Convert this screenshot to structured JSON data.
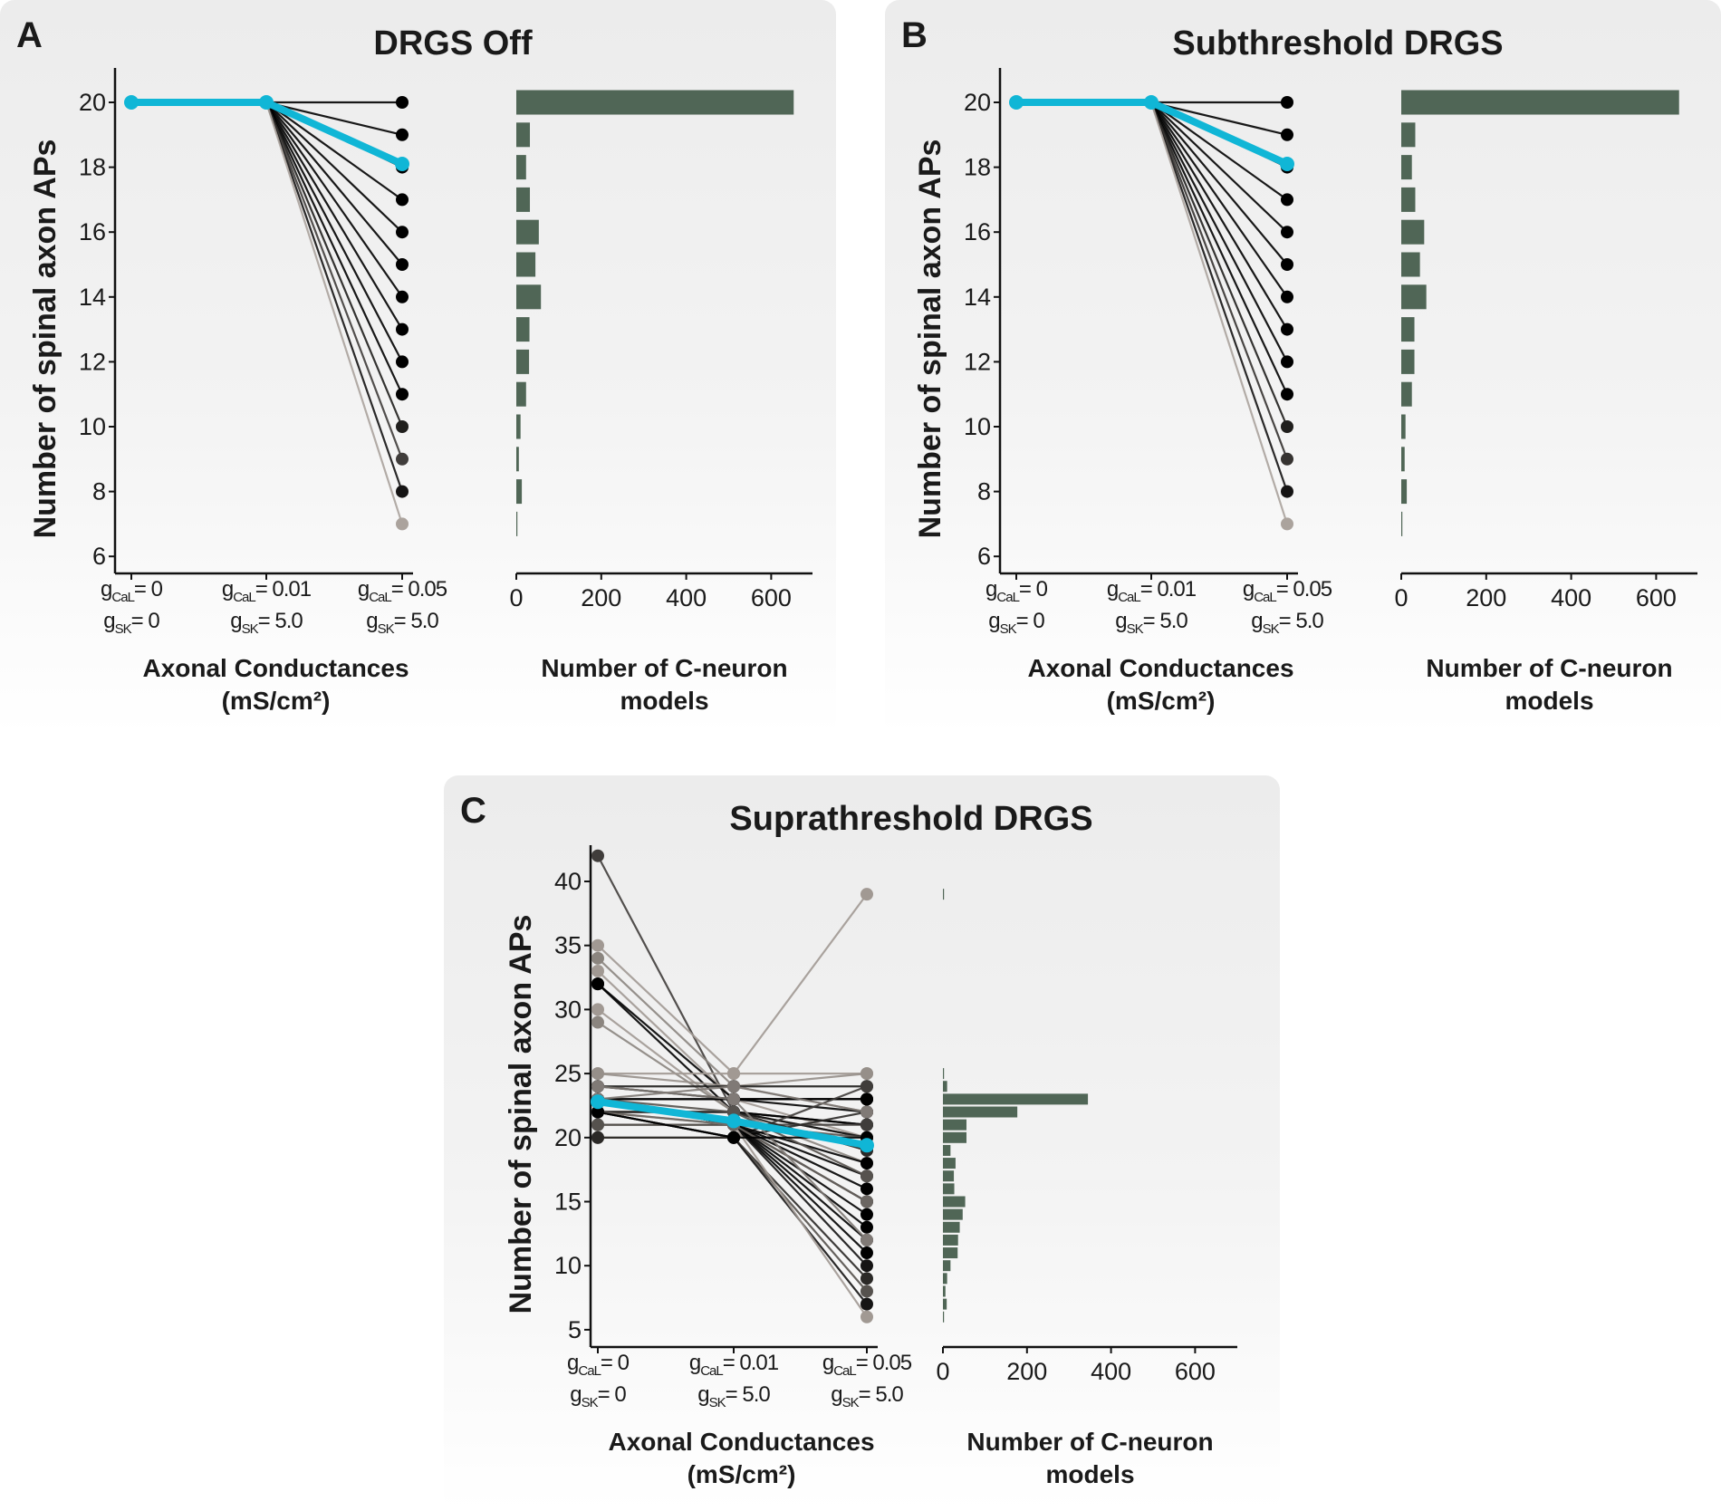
{
  "chart_data": [
    {
      "type": "line+bar",
      "panel_letter": "A",
      "title": "DRGS Off",
      "ylabel": "Number of spinal axon APs",
      "xlabel_lines": [
        "Axonal Conductances",
        "(mS/cm²)"
      ],
      "hist_xlabel_lines": [
        "Number of C-neuron",
        "models"
      ],
      "categories": [
        {
          "g": "g",
          "cal_sub": "CaL",
          "cal": "= 0",
          "sk_sub": "SK",
          "sk": "= 0"
        },
        {
          "g": "g",
          "cal_sub": "CaL",
          "cal": "= 0.01",
          "sk_sub": "SK",
          "sk": "= 5.0"
        },
        {
          "g": "g",
          "cal_sub": "CaL",
          "cal": "= 0.05",
          "sk_sub": "SK",
          "sk": "= 5.0"
        }
      ],
      "ylim": [
        5.5,
        21
      ],
      "yticks": [
        "6",
        "8",
        "10",
        "12",
        "14",
        "16",
        "18",
        "20"
      ],
      "hist_xlim": [
        0,
        700
      ],
      "hist_xticks": [
        "0",
        "200",
        "400",
        "600"
      ],
      "mean_line": [
        20,
        20,
        18.1
      ],
      "trajectories": [
        {
          "values": [
            20,
            20,
            20
          ],
          "weight": 1
        },
        {
          "values": [
            20,
            20,
            19
          ],
          "weight": 1
        },
        {
          "values": [
            20,
            20,
            18
          ],
          "weight": 1
        },
        {
          "values": [
            20,
            20,
            17
          ],
          "weight": 1
        },
        {
          "values": [
            20,
            20,
            16
          ],
          "weight": 1
        },
        {
          "values": [
            20,
            20,
            15
          ],
          "weight": 1
        },
        {
          "values": [
            20,
            20,
            14
          ],
          "weight": 1
        },
        {
          "values": [
            20,
            20,
            13
          ],
          "weight": 1
        },
        {
          "values": [
            20,
            20,
            12
          ],
          "weight": 1
        },
        {
          "values": [
            20,
            20,
            11
          ],
          "weight": 1
        },
        {
          "values": [
            20,
            20,
            10
          ],
          "weight": 0.85
        },
        {
          "values": [
            20,
            20,
            9
          ],
          "weight": 0.7
        },
        {
          "values": [
            20,
            20,
            8
          ],
          "weight": 0.9
        },
        {
          "values": [
            20,
            20,
            7
          ],
          "weight": 0.2
        }
      ],
      "histogram": {
        "bins": [
          20,
          19,
          18,
          17,
          16,
          15,
          14,
          13,
          12,
          11,
          10,
          9,
          8,
          7
        ],
        "counts": [
          653,
          32,
          23,
          32,
          53,
          45,
          58,
          31,
          30,
          23,
          10,
          6,
          13,
          1
        ]
      }
    },
    {
      "type": "line+bar",
      "panel_letter": "B",
      "title": "Subthreshold DRGS",
      "ylabel": "Number of spinal axon APs",
      "xlabel_lines": [
        "Axonal Conductances",
        "(mS/cm²)"
      ],
      "hist_xlabel_lines": [
        "Number of C-neuron",
        "models"
      ],
      "categories": [
        {
          "g": "g",
          "cal_sub": "CaL",
          "cal": "= 0",
          "sk_sub": "SK",
          "sk": "= 0"
        },
        {
          "g": "g",
          "cal_sub": "CaL",
          "cal": "= 0.01",
          "sk_sub": "SK",
          "sk": "= 5.0"
        },
        {
          "g": "g",
          "cal_sub": "CaL",
          "cal": "= 0.05",
          "sk_sub": "SK",
          "sk": "= 5.0"
        }
      ],
      "ylim": [
        5.5,
        21
      ],
      "yticks": [
        "6",
        "8",
        "10",
        "12",
        "14",
        "16",
        "18",
        "20"
      ],
      "hist_xlim": [
        0,
        700
      ],
      "hist_xticks": [
        "0",
        "200",
        "400",
        "600"
      ],
      "mean_line": [
        20,
        20,
        18.1
      ],
      "trajectories": [
        {
          "values": [
            20,
            20,
            20
          ],
          "weight": 1
        },
        {
          "values": [
            20,
            20,
            19
          ],
          "weight": 1
        },
        {
          "values": [
            20,
            20,
            18
          ],
          "weight": 1
        },
        {
          "values": [
            20,
            20,
            17
          ],
          "weight": 1
        },
        {
          "values": [
            20,
            20,
            16
          ],
          "weight": 1
        },
        {
          "values": [
            20,
            20,
            15
          ],
          "weight": 1
        },
        {
          "values": [
            20,
            20,
            14
          ],
          "weight": 1
        },
        {
          "values": [
            20,
            20,
            13
          ],
          "weight": 1
        },
        {
          "values": [
            20,
            20,
            12
          ],
          "weight": 1
        },
        {
          "values": [
            20,
            20,
            11
          ],
          "weight": 1
        },
        {
          "values": [
            20,
            20,
            10
          ],
          "weight": 0.85
        },
        {
          "values": [
            20,
            20,
            9
          ],
          "weight": 0.75
        },
        {
          "values": [
            20,
            20,
            8
          ],
          "weight": 0.9
        },
        {
          "values": [
            20,
            20,
            7
          ],
          "weight": 0.2
        }
      ],
      "histogram": {
        "bins": [
          20,
          19,
          18,
          17,
          16,
          15,
          14,
          13,
          12,
          11,
          10,
          9,
          8,
          7
        ],
        "counts": [
          654,
          33,
          25,
          33,
          54,
          44,
          59,
          31,
          31,
          25,
          10,
          8,
          13,
          1
        ]
      }
    },
    {
      "type": "line+bar",
      "panel_letter": "C",
      "title": "Suprathreshold DRGS",
      "ylabel": "Number of spinal axon APs",
      "xlabel_lines": [
        "Axonal Conductances",
        "(mS/cm²)"
      ],
      "hist_xlabel_lines": [
        "Number of C-neuron",
        "models"
      ],
      "categories": [
        {
          "g": "g",
          "cal_sub": "CaL",
          "cal": "= 0",
          "sk_sub": "SK",
          "sk": "= 0"
        },
        {
          "g": "g",
          "cal_sub": "CaL",
          "cal": "= 0.01",
          "sk_sub": "SK",
          "sk": "= 5.0"
        },
        {
          "g": "g",
          "cal_sub": "CaL",
          "cal": "= 0.05",
          "sk_sub": "SK",
          "sk": "= 5.0"
        }
      ],
      "ylim": [
        4,
        43
      ],
      "yticks": [
        "5",
        "10",
        "15",
        "20",
        "25",
        "30",
        "35",
        "40"
      ],
      "hist_xlim": [
        0,
        700
      ],
      "hist_xticks": [
        "0",
        "200",
        "400",
        "600"
      ],
      "mean_line": [
        22.8,
        21.3,
        19.4
      ],
      "trajectories": [
        {
          "values": [
            42,
            22,
            20
          ],
          "weight": 0.7
        },
        {
          "values": [
            35,
            25,
            25
          ],
          "weight": 0.25
        },
        {
          "values": [
            34,
            24,
            22
          ],
          "weight": 0.35
        },
        {
          "values": [
            33,
            23,
            20
          ],
          "weight": 0.25
        },
        {
          "values": [
            32,
            23,
            23
          ],
          "weight": 1
        },
        {
          "values": [
            32,
            22,
            21
          ],
          "weight": 1
        },
        {
          "values": [
            30,
            22,
            19
          ],
          "weight": 0.25
        },
        {
          "values": [
            29,
            22,
            18
          ],
          "weight": 0.35
        },
        {
          "values": [
            25,
            25,
            39
          ],
          "weight": 0.25
        },
        {
          "values": [
            25,
            24,
            25
          ],
          "weight": 0.3
        },
        {
          "values": [
            24,
            24,
            24
          ],
          "weight": 0.85
        },
        {
          "values": [
            24,
            23,
            23
          ],
          "weight": 1
        },
        {
          "values": [
            23,
            23,
            23
          ],
          "weight": 1
        },
        {
          "values": [
            23,
            23,
            22
          ],
          "weight": 1
        },
        {
          "values": [
            22,
            22,
            21
          ],
          "weight": 1
        },
        {
          "values": [
            22,
            22,
            20
          ],
          "weight": 0.9
        },
        {
          "values": [
            21,
            21,
            21
          ],
          "weight": 0.7
        },
        {
          "values": [
            21,
            21,
            20
          ],
          "weight": 0.6
        },
        {
          "values": [
            20,
            20,
            24
          ],
          "weight": 0.7
        },
        {
          "values": [
            20,
            20,
            22
          ],
          "weight": 0.8
        },
        {
          "values": [
            23,
            21,
            18
          ],
          "weight": 1
        },
        {
          "values": [
            23,
            21,
            17
          ],
          "weight": 1
        },
        {
          "values": [
            23,
            21,
            16
          ],
          "weight": 1
        },
        {
          "values": [
            23,
            21,
            15
          ],
          "weight": 1
        },
        {
          "values": [
            23,
            21,
            14
          ],
          "weight": 1
        },
        {
          "values": [
            23,
            21,
            13
          ],
          "weight": 1
        },
        {
          "values": [
            23,
            21,
            12
          ],
          "weight": 1
        },
        {
          "values": [
            23,
            21,
            11
          ],
          "weight": 1
        },
        {
          "values": [
            23,
            21,
            10
          ],
          "weight": 0.9
        },
        {
          "values": [
            22,
            20,
            9
          ],
          "weight": 0.8
        },
        {
          "values": [
            22,
            20,
            8
          ],
          "weight": 0.6
        },
        {
          "values": [
            22,
            20,
            7
          ],
          "weight": 0.9
        },
        {
          "values": [
            22,
            21,
            6
          ],
          "weight": 0.25
        },
        {
          "values": [
            22,
            22,
            19
          ],
          "weight": 0.8
        },
        {
          "values": [
            23,
            22,
            17
          ],
          "weight": 0.6
        },
        {
          "values": [
            22,
            21,
            15
          ],
          "weight": 0.5
        },
        {
          "values": [
            24,
            23,
            12
          ],
          "weight": 0.4
        },
        {
          "values": [
            22,
            20,
            20
          ],
          "weight": 1
        },
        {
          "values": [
            23,
            24,
            22
          ],
          "weight": 0.4
        }
      ],
      "histogram": {
        "bins": [
          39,
          25,
          24,
          23,
          22,
          21,
          20,
          19,
          18,
          17,
          16,
          15,
          14,
          13,
          12,
          11,
          10,
          9,
          8,
          7,
          6
        ],
        "counts": [
          1,
          1,
          10,
          345,
          177,
          56,
          56,
          18,
          30,
          26,
          27,
          53,
          47,
          40,
          36,
          35,
          18,
          10,
          6,
          9,
          1
        ]
      }
    }
  ]
}
